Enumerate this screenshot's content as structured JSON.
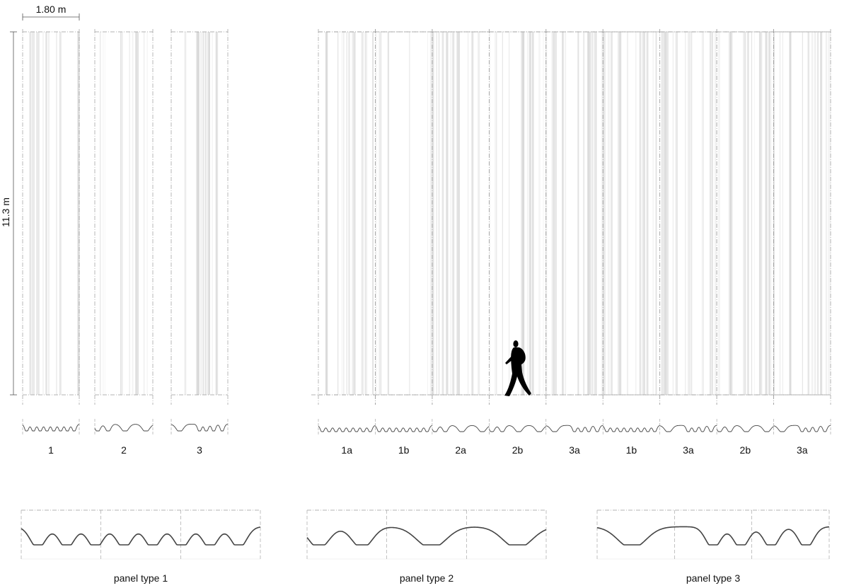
{
  "dimensions": {
    "width_label": "1.80 m",
    "height_label": "11.3 m"
  },
  "individual_panels": [
    {
      "label": "1",
      "type": 1
    },
    {
      "label": "2",
      "type": 2
    },
    {
      "label": "3",
      "type": 3
    }
  ],
  "facade_panels": [
    {
      "label": "1a",
      "type": 1
    },
    {
      "label": "1b",
      "type": 1
    },
    {
      "label": "2a",
      "type": 2
    },
    {
      "label": "2b",
      "type": 2
    },
    {
      "label": "3a",
      "type": 3
    },
    {
      "label": "1b",
      "type": 1
    },
    {
      "label": "3a",
      "type": 3
    },
    {
      "label": "2b",
      "type": 2
    },
    {
      "label": "3a",
      "type": 3
    }
  ],
  "sections": [
    {
      "label": "panel type 1",
      "type": 1
    },
    {
      "label": "panel type 2",
      "type": 2
    },
    {
      "label": "panel type 3",
      "type": 3
    }
  ],
  "colors": {
    "line": "#444444",
    "dashed": "#9a9a9a",
    "stripe": "#d6d6d6",
    "figure": "#000000"
  }
}
